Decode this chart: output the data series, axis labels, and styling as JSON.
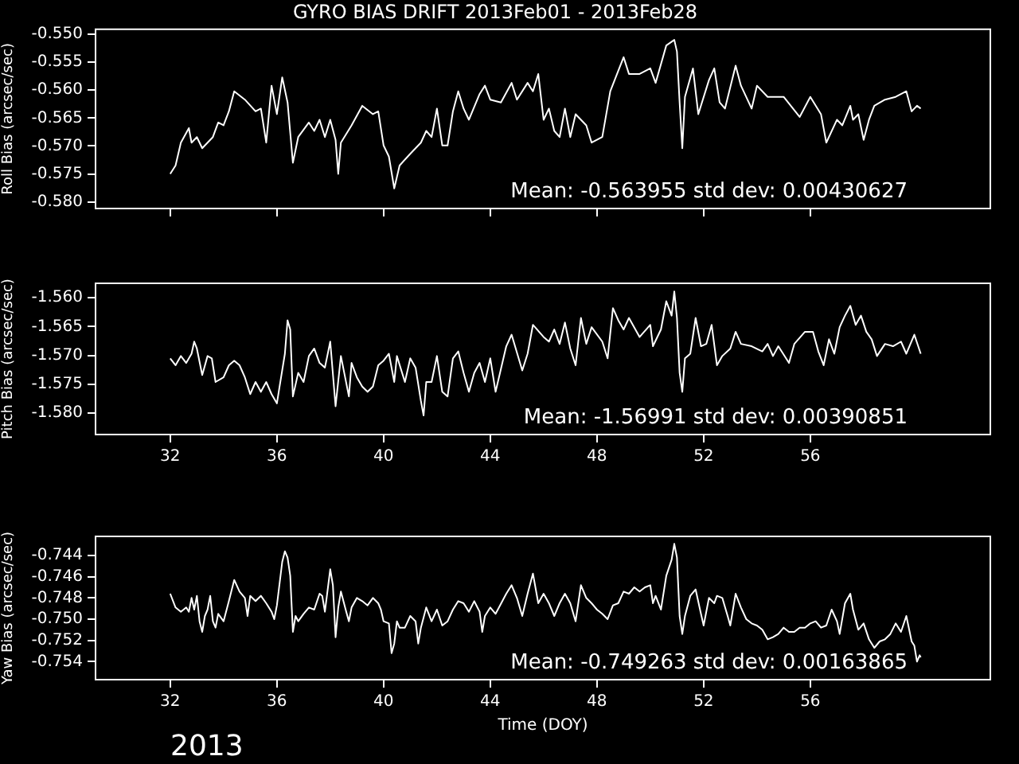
{
  "chart_data": [
    {
      "type": "line",
      "title": "GYRO BIAS DRIFT 2013Feb01 - 2013Feb28",
      "ylabel": "Roll Bias (arcsec/sec)",
      "xlim": [
        29.2,
        62.75
      ],
      "xticks": [
        32,
        36,
        40,
        44,
        48,
        52,
        56
      ],
      "ylim": [
        -0.5812,
        -0.5491
      ],
      "yticks": [
        {
          "value": -0.55,
          "label": "-0.550"
        },
        {
          "value": -0.555,
          "label": "-0.555"
        },
        {
          "value": -0.56,
          "label": "-0.560"
        },
        {
          "value": -0.565,
          "label": "-0.565"
        },
        {
          "value": -0.57,
          "label": "-0.570"
        },
        {
          "value": -0.575,
          "label": "-0.575"
        },
        {
          "value": -0.58,
          "label": "-0.580"
        }
      ],
      "tick_labels": "y",
      "annotations": [
        "Mean: -0.563955 std dev: 0.00430627"
      ],
      "series": [
        {
          "color": "#ffffff",
          "x": [
            32.0,
            32.2,
            32.4,
            32.7,
            32.8,
            33.0,
            33.2,
            33.6,
            33.8,
            34.0,
            34.2,
            34.4,
            34.8,
            35.2,
            35.4,
            35.6,
            35.8,
            36.0,
            36.2,
            36.4,
            36.6,
            36.8,
            37.2,
            37.4,
            37.6,
            37.8,
            38.0,
            38.2,
            38.3,
            38.4,
            38.8,
            39.2,
            39.6,
            39.8,
            40.0,
            40.2,
            40.4,
            40.6,
            41.0,
            41.4,
            41.6,
            41.8,
            42.0,
            42.2,
            42.4,
            42.6,
            42.8,
            43.0,
            43.2,
            43.6,
            43.8,
            44.0,
            44.4,
            44.8,
            45.0,
            45.4,
            45.6,
            45.8,
            46.0,
            46.2,
            46.4,
            46.6,
            46.8,
            47.0,
            47.2,
            47.6,
            47.8,
            48.2,
            48.5,
            49.0,
            49.2,
            49.6,
            50.0,
            50.2,
            50.6,
            50.9,
            51.0,
            51.1,
            51.2,
            51.3,
            51.6,
            51.8,
            52.2,
            52.4,
            52.6,
            52.8,
            53.2,
            53.4,
            53.8,
            54.0,
            54.4,
            55.0,
            55.6,
            56.0,
            56.4,
            56.6,
            57.0,
            57.2,
            57.5,
            57.6,
            57.8,
            58.0,
            58.2,
            58.4,
            58.8,
            59.2,
            59.6,
            59.8,
            60.0,
            60.14
          ],
          "values": [
            -0.575,
            -0.5735,
            -0.5694,
            -0.5668,
            -0.5694,
            -0.5684,
            -0.5704,
            -0.5684,
            -0.5658,
            -0.5663,
            -0.5638,
            -0.5602,
            -0.5617,
            -0.5638,
            -0.5633,
            -0.5694,
            -0.5592,
            -0.5643,
            -0.5577,
            -0.5622,
            -0.573,
            -0.5684,
            -0.5658,
            -0.5673,
            -0.5653,
            -0.5684,
            -0.5653,
            -0.5689,
            -0.575,
            -0.5694,
            -0.5663,
            -0.5628,
            -0.5643,
            -0.5638,
            -0.5699,
            -0.5719,
            -0.5776,
            -0.5735,
            -0.5714,
            -0.5694,
            -0.5673,
            -0.5684,
            -0.5633,
            -0.5699,
            -0.5699,
            -0.5638,
            -0.5602,
            -0.5633,
            -0.5653,
            -0.5607,
            -0.5592,
            -0.5617,
            -0.5622,
            -0.5587,
            -0.5617,
            -0.5587,
            -0.5602,
            -0.5571,
            -0.5653,
            -0.5633,
            -0.5673,
            -0.5684,
            -0.5633,
            -0.5684,
            -0.5643,
            -0.5663,
            -0.5694,
            -0.5684,
            -0.5602,
            -0.5541,
            -0.5571,
            -0.5571,
            -0.5561,
            -0.5587,
            -0.552,
            -0.551,
            -0.5531,
            -0.5622,
            -0.5704,
            -0.5612,
            -0.5561,
            -0.5643,
            -0.5582,
            -0.5561,
            -0.5622,
            -0.5633,
            -0.5556,
            -0.5592,
            -0.5633,
            -0.5592,
            -0.5612,
            -0.5612,
            -0.5648,
            -0.5612,
            -0.5643,
            -0.5694,
            -0.5653,
            -0.5663,
            -0.5628,
            -0.5653,
            -0.5643,
            -0.5689,
            -0.5653,
            -0.5628,
            -0.5617,
            -0.5612,
            -0.5602,
            -0.5638,
            -0.5628,
            -0.5633
          ]
        }
      ]
    },
    {
      "type": "line",
      "ylabel": "Pitch Bias (arcsec/sec)",
      "xlim": [
        29.2,
        62.75
      ],
      "xticks": [
        32,
        36,
        40,
        44,
        48,
        52,
        56
      ],
      "ylim": [
        -1.5837,
        -1.5575
      ],
      "yticks": [
        {
          "value": -1.56,
          "label": "-1.560"
        },
        {
          "value": -1.565,
          "label": "-1.565"
        },
        {
          "value": -1.57,
          "label": "-1.570"
        },
        {
          "value": -1.575,
          "label": "-1.575"
        },
        {
          "value": -1.58,
          "label": "-1.580"
        }
      ],
      "annotations": [
        "Mean: -1.56991 std dev: 0.00390851"
      ],
      "series": [
        {
          "color": "#ffffff",
          "x": [
            32.0,
            32.2,
            32.4,
            32.6,
            32.8,
            32.9,
            33.0,
            33.2,
            33.4,
            33.56,
            33.7,
            34.0,
            34.2,
            34.4,
            34.6,
            34.8,
            35.0,
            35.2,
            35.4,
            35.6,
            35.8,
            36.0,
            36.1,
            36.3,
            36.4,
            36.5,
            36.6,
            36.8,
            37.0,
            37.2,
            37.4,
            37.6,
            37.8,
            38.0,
            38.2,
            38.4,
            38.7,
            38.8,
            39.0,
            39.2,
            39.4,
            39.6,
            39.8,
            40.0,
            40.2,
            40.4,
            40.5,
            40.8,
            41.0,
            41.2,
            41.4,
            41.5,
            41.6,
            41.8,
            42.0,
            42.2,
            42.4,
            42.6,
            42.8,
            43.0,
            43.2,
            43.4,
            43.6,
            43.8,
            44.0,
            44.2,
            44.6,
            44.8,
            45.2,
            45.4,
            45.6,
            46.0,
            46.2,
            46.4,
            46.6,
            46.8,
            47.0,
            47.2,
            47.4,
            47.6,
            47.8,
            48.2,
            48.4,
            48.6,
            48.8,
            49.0,
            49.2,
            49.6,
            50.0,
            50.1,
            50.4,
            50.6,
            50.8,
            50.9,
            51.0,
            51.1,
            51.2,
            51.3,
            51.5,
            51.7,
            51.9,
            52.1,
            52.3,
            52.5,
            52.7,
            53.0,
            53.2,
            53.4,
            53.8,
            54.2,
            54.4,
            54.6,
            54.8,
            55.2,
            55.4,
            55.8,
            56.1,
            56.3,
            56.5,
            56.7,
            56.9,
            57.1,
            57.3,
            57.5,
            57.7,
            57.9,
            58.1,
            58.3,
            58.5,
            58.8,
            59.1,
            59.4,
            59.6,
            59.9,
            60.14
          ],
          "values": [
            -1.5705,
            -1.5717,
            -1.5701,
            -1.5713,
            -1.5697,
            -1.5676,
            -1.5688,
            -1.5734,
            -1.5701,
            -1.5705,
            -1.5746,
            -1.5738,
            -1.5717,
            -1.5709,
            -1.5717,
            -1.5738,
            -1.5767,
            -1.5746,
            -1.5763,
            -1.5746,
            -1.5767,
            -1.5783,
            -1.5754,
            -1.5697,
            -1.5639,
            -1.5655,
            -1.5771,
            -1.573,
            -1.5746,
            -1.5701,
            -1.5688,
            -1.5713,
            -1.5721,
            -1.5676,
            -1.5788,
            -1.5701,
            -1.5771,
            -1.5713,
            -1.5738,
            -1.5754,
            -1.5763,
            -1.5754,
            -1.5717,
            -1.5709,
            -1.5697,
            -1.5746,
            -1.5701,
            -1.5746,
            -1.5705,
            -1.5721,
            -1.5779,
            -1.5804,
            -1.5746,
            -1.5746,
            -1.5701,
            -1.5763,
            -1.5771,
            -1.5705,
            -1.5693,
            -1.573,
            -1.5763,
            -1.573,
            -1.5713,
            -1.5746,
            -1.5705,
            -1.5763,
            -1.5684,
            -1.5664,
            -1.5726,
            -1.5697,
            -1.5647,
            -1.5668,
            -1.5676,
            -1.5655,
            -1.568,
            -1.5643,
            -1.5688,
            -1.5717,
            -1.5635,
            -1.568,
            -1.5651,
            -1.5676,
            -1.5705,
            -1.5618,
            -1.5639,
            -1.5655,
            -1.5635,
            -1.5668,
            -1.5647,
            -1.5684,
            -1.5655,
            -1.5606,
            -1.5631,
            -1.5589,
            -1.5635,
            -1.573,
            -1.5763,
            -1.5705,
            -1.5697,
            -1.5635,
            -1.5684,
            -1.568,
            -1.5647,
            -1.5717,
            -1.5701,
            -1.5688,
            -1.5659,
            -1.568,
            -1.5684,
            -1.5693,
            -1.568,
            -1.5701,
            -1.5684,
            -1.5713,
            -1.568,
            -1.5659,
            -1.5659,
            -1.5693,
            -1.5717,
            -1.5672,
            -1.5697,
            -1.5651,
            -1.5631,
            -1.5614,
            -1.5647,
            -1.5631,
            -1.5659,
            -1.5672,
            -1.5701,
            -1.568,
            -1.5684,
            -1.5676,
            -1.5697,
            -1.5664,
            -1.5697
          ]
        }
      ]
    },
    {
      "type": "line",
      "ylabel": "Yaw Bias (arcsec/sec)",
      "xlabel": "Time (DOY)",
      "xlim": [
        29.2,
        62.75
      ],
      "xticks": [
        32,
        36,
        40,
        44,
        48,
        52,
        56
      ],
      "ylim": [
        -0.7557,
        -0.7422
      ],
      "yticks": [
        {
          "value": -0.744,
          "label": "-0.744"
        },
        {
          "value": -0.746,
          "label": "-0.746"
        },
        {
          "value": -0.748,
          "label": "-0.748"
        },
        {
          "value": -0.75,
          "label": "-0.750"
        },
        {
          "value": -0.752,
          "label": "-0.752"
        },
        {
          "value": -0.754,
          "label": "-0.754"
        }
      ],
      "annotations": [
        "Mean: -0.749263 std dev: 0.00163865",
        "2013"
      ],
      "series": [
        {
          "color": "#ffffff",
          "x": [
            32.0,
            32.2,
            32.4,
            32.6,
            32.7,
            32.8,
            32.9,
            33.0,
            33.1,
            33.2,
            33.3,
            33.4,
            33.5,
            33.6,
            33.7,
            33.8,
            34.0,
            34.2,
            34.4,
            34.6,
            34.8,
            34.9,
            35.0,
            35.2,
            35.4,
            35.6,
            35.8,
            35.9,
            36.0,
            36.2,
            36.3,
            36.4,
            36.5,
            36.6,
            36.7,
            36.8,
            37.0,
            37.2,
            37.4,
            37.6,
            37.7,
            37.8,
            38.0,
            38.1,
            38.2,
            38.3,
            38.4,
            38.6,
            38.7,
            38.8,
            39.0,
            39.2,
            39.4,
            39.6,
            39.8,
            39.9,
            40.0,
            40.2,
            40.3,
            40.4,
            40.5,
            40.6,
            40.8,
            41.0,
            41.2,
            41.3,
            41.4,
            41.6,
            41.8,
            42.0,
            42.2,
            42.4,
            42.6,
            42.8,
            43.0,
            43.2,
            43.4,
            43.6,
            43.7,
            43.8,
            44.0,
            44.2,
            44.6,
            44.8,
            45.0,
            45.2,
            45.4,
            45.6,
            45.8,
            46.0,
            46.2,
            46.4,
            46.6,
            46.8,
            47.0,
            47.2,
            47.4,
            47.6,
            47.8,
            48.0,
            48.2,
            48.4,
            48.6,
            48.8,
            49.0,
            49.2,
            49.4,
            49.6,
            49.8,
            50.0,
            50.1,
            50.2,
            50.4,
            50.6,
            50.8,
            50.9,
            51.0,
            51.1,
            51.2,
            51.3,
            51.5,
            51.7,
            51.9,
            52.0,
            52.2,
            52.4,
            52.5,
            52.7,
            52.9,
            53.0,
            53.2,
            53.4,
            53.6,
            53.8,
            54.0,
            54.2,
            54.4,
            54.6,
            54.8,
            55.0,
            55.2,
            55.4,
            55.6,
            55.8,
            56.0,
            56.2,
            56.4,
            56.6,
            56.8,
            57.0,
            57.1,
            57.3,
            57.5,
            57.6,
            57.8,
            58.0,
            58.2,
            58.4,
            58.6,
            58.8,
            59.0,
            59.2,
            59.4,
            59.6,
            59.8,
            59.9,
            60.0,
            60.1,
            60.14
          ],
          "values": [
            -0.7476,
            -0.7489,
            -0.7493,
            -0.7489,
            -0.7493,
            -0.748,
            -0.7491,
            -0.7478,
            -0.7502,
            -0.7512,
            -0.7497,
            -0.7491,
            -0.7478,
            -0.7502,
            -0.7508,
            -0.7495,
            -0.7502,
            -0.7483,
            -0.7463,
            -0.7474,
            -0.748,
            -0.7497,
            -0.7478,
            -0.7483,
            -0.7478,
            -0.7485,
            -0.7493,
            -0.75,
            -0.7487,
            -0.7446,
            -0.7436,
            -0.7442,
            -0.7459,
            -0.7512,
            -0.7497,
            -0.7502,
            -0.7495,
            -0.7489,
            -0.7491,
            -0.7476,
            -0.7478,
            -0.7493,
            -0.7453,
            -0.7468,
            -0.7517,
            -0.7489,
            -0.7474,
            -0.7493,
            -0.7502,
            -0.7489,
            -0.748,
            -0.7483,
            -0.7487,
            -0.748,
            -0.7485,
            -0.7491,
            -0.7502,
            -0.7504,
            -0.7532,
            -0.7523,
            -0.7502,
            -0.7508,
            -0.7508,
            -0.7497,
            -0.7502,
            -0.7523,
            -0.7508,
            -0.7489,
            -0.7502,
            -0.7491,
            -0.7506,
            -0.7502,
            -0.7491,
            -0.7483,
            -0.7485,
            -0.7493,
            -0.7483,
            -0.7493,
            -0.7512,
            -0.7497,
            -0.7489,
            -0.7495,
            -0.7476,
            -0.7468,
            -0.748,
            -0.7497,
            -0.7476,
            -0.7457,
            -0.7485,
            -0.7476,
            -0.7485,
            -0.7497,
            -0.7485,
            -0.7476,
            -0.7485,
            -0.7502,
            -0.7468,
            -0.748,
            -0.7485,
            -0.7491,
            -0.7495,
            -0.75,
            -0.7487,
            -0.7485,
            -0.7474,
            -0.7476,
            -0.747,
            -0.7474,
            -0.747,
            -0.7468,
            -0.7485,
            -0.7478,
            -0.7491,
            -0.7459,
            -0.7444,
            -0.7429,
            -0.7442,
            -0.7497,
            -0.7514,
            -0.7497,
            -0.7478,
            -0.7472,
            -0.7495,
            -0.7506,
            -0.748,
            -0.7485,
            -0.7478,
            -0.748,
            -0.7497,
            -0.7506,
            -0.7476,
            -0.7489,
            -0.75,
            -0.7504,
            -0.7506,
            -0.751,
            -0.7519,
            -0.7517,
            -0.7514,
            -0.7508,
            -0.7512,
            -0.7512,
            -0.7508,
            -0.7508,
            -0.7504,
            -0.7502,
            -0.7508,
            -0.7506,
            -0.7491,
            -0.7502,
            -0.7514,
            -0.7485,
            -0.7476,
            -0.7491,
            -0.751,
            -0.7504,
            -0.7519,
            -0.7527,
            -0.7521,
            -0.7519,
            -0.7514,
            -0.7504,
            -0.7512,
            -0.7497,
            -0.7521,
            -0.7525,
            -0.754,
            -0.7534,
            -0.7536
          ]
        }
      ]
    }
  ]
}
